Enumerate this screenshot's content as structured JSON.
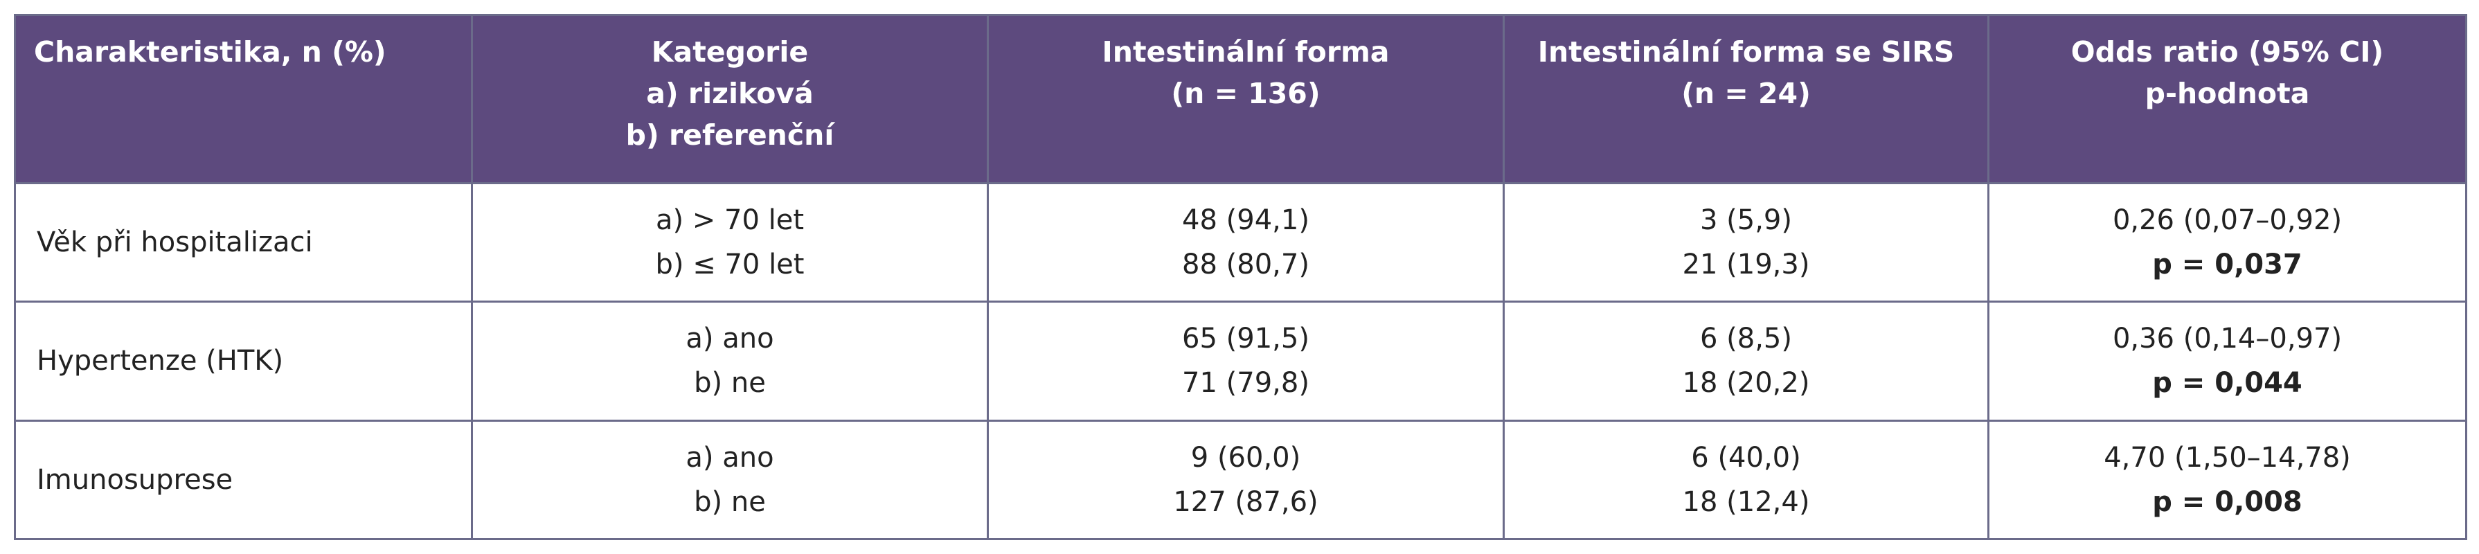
{
  "table": {
    "headers": [
      {
        "lines": [
          "Charakteristika, n (%)"
        ]
      },
      {
        "lines": [
          "Kategorie",
          "a) riziková",
          "b) referenční"
        ]
      },
      {
        "lines": [
          "Intestinální forma",
          "(n = 136)"
        ]
      },
      {
        "lines": [
          "Intestinální forma se SIRS",
          "(n = 24)"
        ]
      },
      {
        "lines": [
          "Odds ratio (95% CI)",
          "p-hodnota"
        ]
      }
    ],
    "rows": [
      {
        "characteristic": "Věk při hospitalizaci",
        "category": [
          "a) > 70 let",
          "b) ≤ 70 let"
        ],
        "intestinal": [
          "48 (94,1)",
          "88 (80,7)"
        ],
        "intestinal_sirs": [
          "3 (5,9)",
          "21 (19,3)"
        ],
        "odds_ratio": "0,26 (0,07–0,92)",
        "p_value": "p = 0,037"
      },
      {
        "characteristic": "Hypertenze (HTK)",
        "category": [
          "a) ano",
          "b) ne"
        ],
        "intestinal": [
          "65 (91,5)",
          "71 (79,8)"
        ],
        "intestinal_sirs": [
          "6 (8,5)",
          "18 (20,2)"
        ],
        "odds_ratio": "0,36 (0,14–0,97)",
        "p_value": "p = 0,044"
      },
      {
        "characteristic": "Imunosuprese",
        "category": [
          "a) ano",
          "b) ne"
        ],
        "intestinal": [
          "9 (60,0)",
          "127 (87,6)"
        ],
        "intestinal_sirs": [
          "6 (40,0)",
          "18 (12,4)"
        ],
        "odds_ratio": "4,70 (1,50–14,78)",
        "p_value": "p = 0,008"
      }
    ],
    "colors": {
      "header_bg": "#5d4a7e",
      "header_text": "#ffffff",
      "border": "#6b6b8a"
    }
  }
}
